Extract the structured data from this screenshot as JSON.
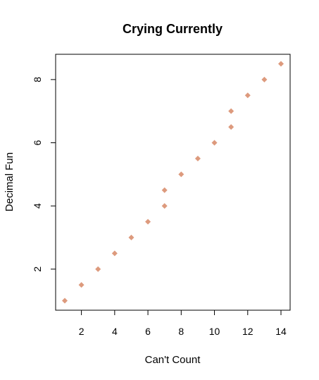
{
  "chart_data": {
    "type": "scatter",
    "title": "Crying Currently",
    "xlabel": "Can't Count",
    "ylabel": "Decimal Fun",
    "xlim": [
      0.45,
      14.55
    ],
    "ylim": [
      0.7,
      8.8
    ],
    "x_ticks": [
      2,
      4,
      6,
      8,
      10,
      12,
      14
    ],
    "y_ticks": [
      2,
      4,
      6,
      8
    ],
    "grid": false,
    "legend": "none",
    "marker": "diamond",
    "point_color": "#dd9a7d",
    "series": [
      {
        "x": [
          1,
          2,
          3,
          4,
          5,
          6,
          7,
          7,
          8,
          9,
          10,
          11,
          11,
          12,
          13,
          14
        ],
        "y": [
          1,
          1.5,
          2,
          2.5,
          3,
          3.5,
          4,
          4.5,
          5,
          5.5,
          6,
          6.5,
          7,
          7.5,
          8,
          8.5
        ]
      }
    ]
  }
}
